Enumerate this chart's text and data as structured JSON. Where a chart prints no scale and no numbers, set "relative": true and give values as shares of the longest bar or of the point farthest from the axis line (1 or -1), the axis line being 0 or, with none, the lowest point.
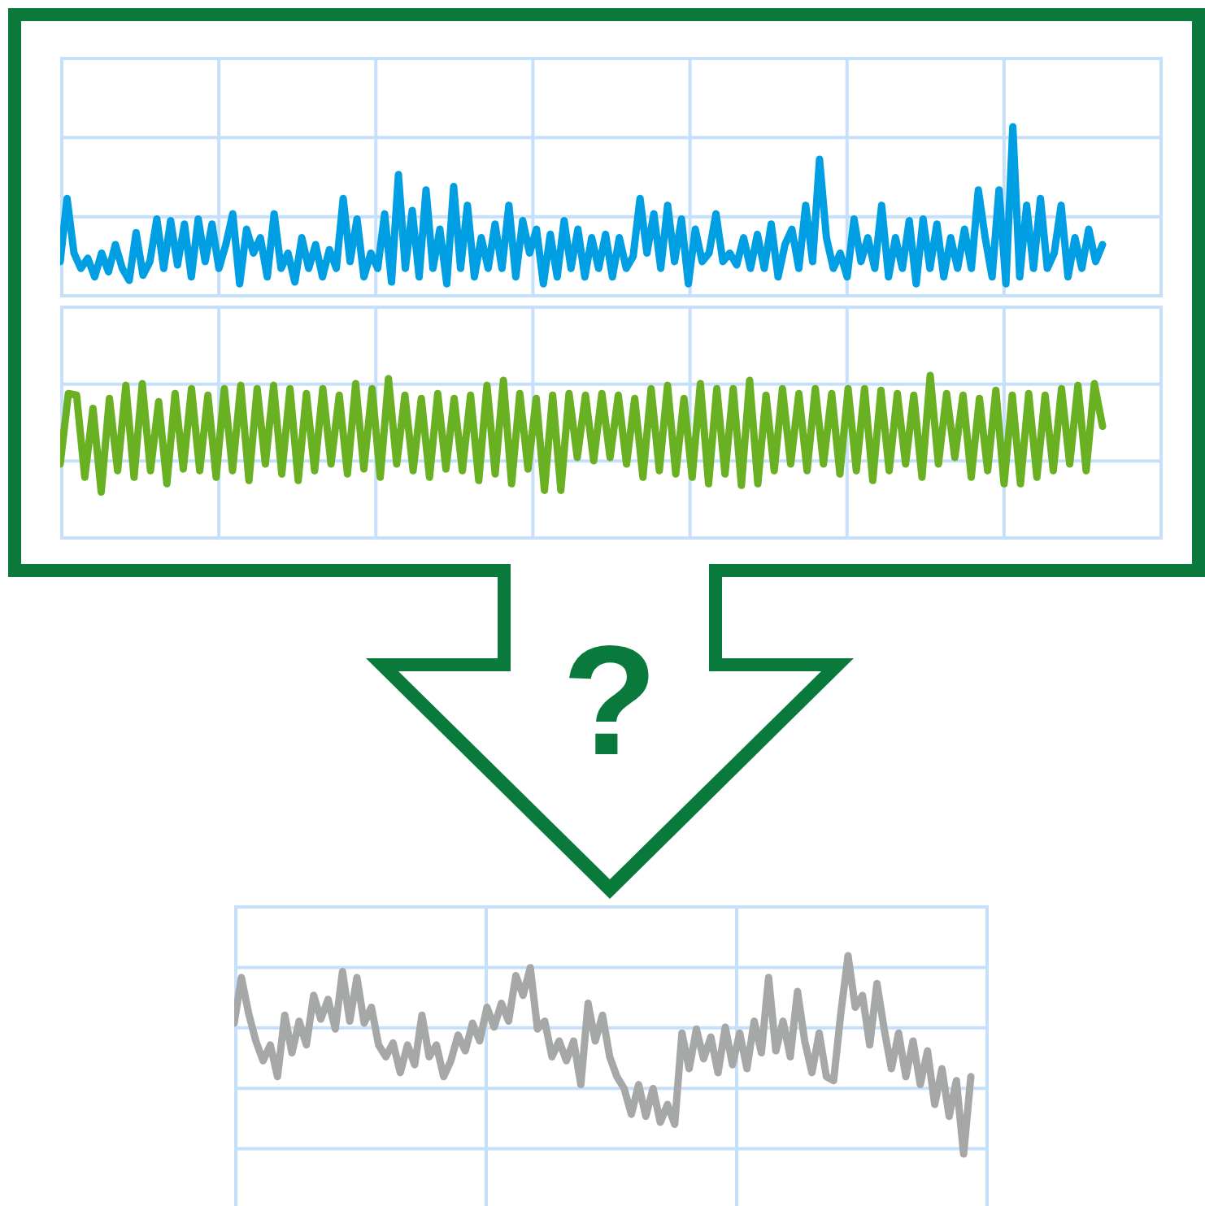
{
  "chart_data": [
    {
      "type": "line",
      "relative": true,
      "grid": true,
      "legend": false,
      "marker": "none",
      "line_style": "solid",
      "tick_labels": false,
      "categories": [
        null,
        null,
        null,
        null,
        null,
        null,
        null,
        null,
        null,
        null,
        null,
        null,
        null,
        null,
        null,
        null,
        null,
        null,
        null,
        null,
        null,
        null,
        null,
        null,
        null,
        null,
        null,
        null,
        null,
        null,
        null,
        null,
        null,
        null,
        null,
        null,
        null,
        null,
        null,
        null,
        null,
        null,
        null,
        null,
        null,
        null,
        null,
        null,
        null,
        null,
        null,
        null,
        null,
        null,
        null,
        null,
        null,
        null,
        null,
        null,
        null,
        null,
        null,
        null,
        null,
        null,
        null,
        null,
        null,
        null,
        null,
        null,
        null,
        null,
        null,
        null,
        null,
        null,
        null,
        null,
        null,
        null,
        null,
        null,
        null,
        null,
        null,
        null,
        null,
        null,
        null,
        null,
        null,
        null,
        null,
        null,
        null,
        null,
        null,
        null,
        null,
        null,
        null,
        null,
        null,
        null,
        null,
        null,
        null,
        null,
        null,
        null,
        null,
        null,
        null,
        null,
        null,
        null,
        null,
        null,
        null,
        null,
        null,
        null,
        null,
        null,
        null,
        null,
        null,
        null,
        null,
        null,
        null,
        null,
        null,
        null,
        null,
        null,
        null,
        null,
        null,
        null,
        null,
        null,
        null,
        null,
        null,
        null,
        null,
        null,
        null,
        null
      ],
      "series": [
        {
          "color": "#009fe3",
          "values": [
            0.21,
            0.58,
            0.26,
            0.17,
            0.23,
            0.12,
            0.26,
            0.15,
            0.31,
            0.17,
            0.1,
            0.38,
            0.13,
            0.21,
            0.46,
            0.17,
            0.45,
            0.19,
            0.43,
            0.12,
            0.46,
            0.21,
            0.43,
            0.17,
            0.31,
            0.49,
            0.08,
            0.4,
            0.26,
            0.35,
            0.12,
            0.49,
            0.17,
            0.26,
            0.09,
            0.35,
            0.17,
            0.31,
            0.12,
            0.28,
            0.17,
            0.58,
            0.21,
            0.46,
            0.12,
            0.26,
            0.17,
            0.49,
            0.09,
            0.72,
            0.17,
            0.51,
            0.12,
            0.63,
            0.17,
            0.4,
            0.08,
            0.65,
            0.17,
            0.54,
            0.12,
            0.35,
            0.17,
            0.43,
            0.17,
            0.54,
            0.12,
            0.45,
            0.26,
            0.4,
            0.08,
            0.37,
            0.12,
            0.45,
            0.17,
            0.4,
            0.12,
            0.35,
            0.17,
            0.37,
            0.12,
            0.35,
            0.17,
            0.24,
            0.58,
            0.26,
            0.49,
            0.17,
            0.54,
            0.21,
            0.46,
            0.08,
            0.4,
            0.21,
            0.26,
            0.49,
            0.21,
            0.26,
            0.19,
            0.35,
            0.17,
            0.37,
            0.17,
            0.43,
            0.12,
            0.31,
            0.4,
            0.17,
            0.54,
            0.21,
            0.81,
            0.35,
            0.17,
            0.26,
            0.12,
            0.46,
            0.21,
            0.35,
            0.17,
            0.54,
            0.12,
            0.35,
            0.17,
            0.45,
            0.08,
            0.46,
            0.17,
            0.43,
            0.12,
            0.35,
            0.17,
            0.4,
            0.17,
            0.63,
            0.35,
            0.12,
            0.63,
            0.08,
            1.0,
            0.12,
            0.54,
            0.17,
            0.58,
            0.17,
            0.26,
            0.54,
            0.12,
            0.35,
            0.17,
            0.4,
            0.21,
            0.31
          ]
        }
      ]
    },
    {
      "type": "line",
      "relative": true,
      "grid": true,
      "legend": false,
      "marker": "none",
      "line_style": "solid",
      "tick_labels": false,
      "categories": [
        null,
        null,
        null,
        null,
        null,
        null,
        null,
        null,
        null,
        null,
        null,
        null,
        null,
        null,
        null,
        null,
        null,
        null,
        null,
        null,
        null,
        null,
        null,
        null,
        null,
        null,
        null,
        null,
        null,
        null,
        null,
        null,
        null,
        null,
        null,
        null,
        null,
        null,
        null,
        null,
        null,
        null,
        null,
        null,
        null,
        null,
        null,
        null,
        null,
        null,
        null,
        null,
        null,
        null,
        null,
        null,
        null,
        null,
        null,
        null,
        null,
        null,
        null,
        null,
        null,
        null,
        null,
        null,
        null,
        null,
        null,
        null,
        null,
        null,
        null,
        null,
        null,
        null,
        null,
        null,
        null,
        null,
        null,
        null,
        null,
        null,
        null,
        null,
        null,
        null,
        null,
        null,
        null,
        null,
        null,
        null,
        null,
        null,
        null,
        null,
        null,
        null,
        null,
        null,
        null,
        null,
        null,
        null,
        null,
        null,
        null,
        null,
        null,
        null,
        null,
        null,
        null,
        null,
        null,
        null,
        null,
        null,
        null,
        null,
        null,
        null,
        null,
        null
      ],
      "series": [
        {
          "color": "#6ab023",
          "values": [
            0.46,
            0.89,
            0.88,
            0.38,
            0.8,
            0.29,
            0.86,
            0.42,
            0.94,
            0.38,
            0.95,
            0.42,
            0.84,
            0.34,
            0.89,
            0.43,
            0.92,
            0.42,
            0.88,
            0.38,
            0.92,
            0.42,
            0.94,
            0.36,
            0.92,
            0.46,
            0.94,
            0.4,
            0.92,
            0.36,
            0.89,
            0.42,
            0.92,
            0.46,
            0.88,
            0.4,
            0.95,
            0.43,
            0.92,
            0.38,
            0.98,
            0.46,
            0.88,
            0.42,
            0.86,
            0.38,
            0.89,
            0.43,
            0.86,
            0.42,
            0.88,
            0.36,
            0.94,
            0.4,
            0.97,
            0.34,
            0.89,
            0.43,
            0.86,
            0.3,
            0.88,
            0.3,
            0.89,
            0.5,
            0.88,
            0.48,
            0.89,
            0.5,
            0.88,
            0.46,
            0.86,
            0.38,
            0.92,
            0.42,
            0.94,
            0.4,
            0.86,
            0.38,
            0.95,
            0.34,
            0.92,
            0.4,
            0.92,
            0.33,
            0.97,
            0.34,
            0.88,
            0.42,
            0.92,
            0.46,
            0.89,
            0.42,
            0.92,
            0.46,
            0.89,
            0.4,
            0.92,
            0.42,
            0.92,
            0.36,
            0.91,
            0.42,
            0.89,
            0.46,
            0.88,
            0.38,
            1.0,
            0.46,
            0.89,
            0.5,
            0.88,
            0.38,
            0.86,
            0.42,
            0.91,
            0.34,
            0.88,
            0.34,
            0.89,
            0.38,
            0.88,
            0.42,
            0.92,
            0.46,
            0.94,
            0.42,
            0.95,
            0.69
          ]
        }
      ]
    },
    {
      "type": "line",
      "relative": true,
      "grid": true,
      "legend": false,
      "marker": "none",
      "line_style": "solid",
      "tick_labels": false,
      "annotations": [
        "?"
      ],
      "categories": [
        null,
        null,
        null,
        null,
        null,
        null,
        null,
        null,
        null,
        null,
        null,
        null,
        null,
        null,
        null,
        null,
        null,
        null,
        null,
        null,
        null,
        null,
        null,
        null,
        null,
        null,
        null,
        null,
        null,
        null,
        null,
        null,
        null,
        null,
        null,
        null,
        null,
        null,
        null,
        null,
        null,
        null,
        null,
        null,
        null,
        null,
        null,
        null,
        null,
        null,
        null,
        null,
        null,
        null,
        null,
        null,
        null,
        null,
        null,
        null,
        null,
        null,
        null,
        null,
        null,
        null,
        null,
        null,
        null,
        null,
        null,
        null,
        null,
        null,
        null,
        null,
        null,
        null,
        null,
        null,
        null,
        null,
        null,
        null,
        null,
        null,
        null,
        null,
        null,
        null,
        null,
        null,
        null,
        null,
        null,
        null,
        null,
        null,
        null,
        null,
        null,
        null,
        null
      ],
      "series": [
        {
          "color": "#a6a8a8",
          "values": [
            0.66,
            0.89,
            0.71,
            0.57,
            0.47,
            0.55,
            0.39,
            0.7,
            0.51,
            0.67,
            0.55,
            0.8,
            0.68,
            0.78,
            0.63,
            0.92,
            0.67,
            0.89,
            0.66,
            0.74,
            0.55,
            0.49,
            0.56,
            0.41,
            0.55,
            0.45,
            0.7,
            0.49,
            0.55,
            0.39,
            0.47,
            0.6,
            0.52,
            0.66,
            0.57,
            0.74,
            0.64,
            0.76,
            0.67,
            0.9,
            0.8,
            0.94,
            0.63,
            0.67,
            0.49,
            0.57,
            0.47,
            0.57,
            0.35,
            0.76,
            0.57,
            0.7,
            0.49,
            0.39,
            0.33,
            0.2,
            0.35,
            0.19,
            0.33,
            0.16,
            0.25,
            0.15,
            0.61,
            0.43,
            0.63,
            0.48,
            0.59,
            0.41,
            0.64,
            0.45,
            0.61,
            0.43,
            0.67,
            0.51,
            0.89,
            0.52,
            0.67,
            0.49,
            0.82,
            0.57,
            0.41,
            0.61,
            0.39,
            0.37,
            0.71,
            1.0,
            0.74,
            0.8,
            0.55,
            0.86,
            0.63,
            0.43,
            0.61,
            0.39,
            0.57,
            0.35,
            0.52,
            0.25,
            0.43,
            0.19,
            0.37,
            0.0,
            0.39
          ]
        }
      ]
    }
  ]
}
